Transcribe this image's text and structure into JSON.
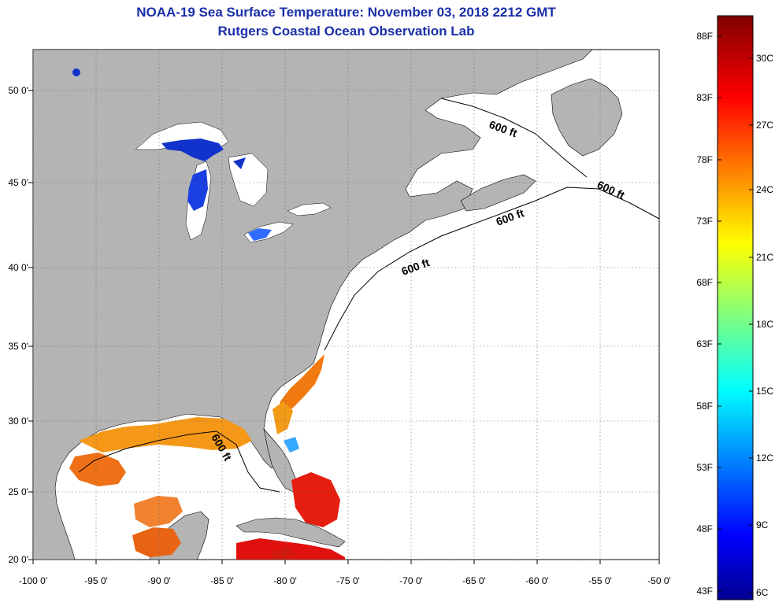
{
  "title": "NOAA-19 Sea Surface Temperature:  November 03, 2018 2212 GMT",
  "subtitle": "Rutgers Coastal Ocean Observation Lab",
  "map": {
    "lon_ticks": [
      "-100 0'",
      "-95 0'",
      "-90 0'",
      "-85 0'",
      "-80 0'",
      "-75 0'",
      "-70 0'",
      "-65 0'",
      "-60 0'",
      "-55 0'",
      "-50 0'"
    ],
    "lat_ticks": [
      "50 0'",
      "45 0'",
      "40 0'",
      "35 0'",
      "30 0'",
      "25 0'",
      "20 0'"
    ],
    "depth_contour_labels": [
      "600 ft",
      "600 ft",
      "600 ft",
      "600 ft",
      "600 ft"
    ],
    "colors": {
      "land": "#b4b4b4",
      "ocean_nodata": "#ffffff",
      "lakes_cold": "#1133cc"
    }
  },
  "colorbar": {
    "fahrenheit_labels": [
      "88F",
      "83F",
      "78F",
      "73F",
      "68F",
      "63F",
      "58F",
      "53F",
      "48F",
      "43F"
    ],
    "celsius_labels": [
      "30C",
      "27C",
      "24C",
      "21C",
      "18C",
      "15C",
      "12C",
      "9C",
      "6C"
    ],
    "range_f": [
      43,
      88
    ],
    "range_c": [
      6,
      31
    ],
    "colormap": "jet"
  }
}
